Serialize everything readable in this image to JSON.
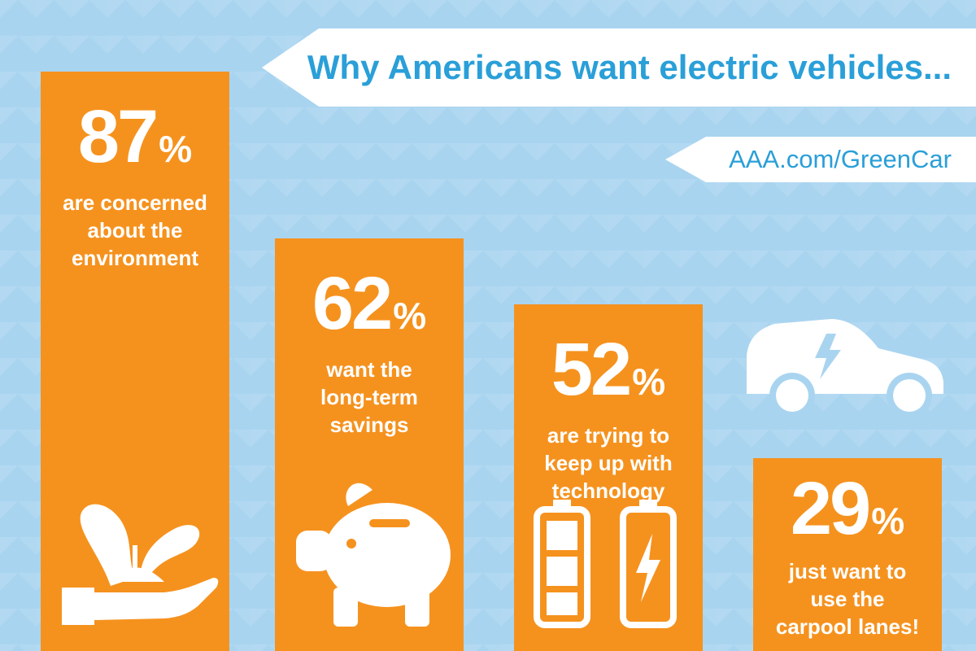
{
  "title": "Why Americans want electric vehicles...",
  "source": "AAA.com/GreenCar",
  "colors": {
    "background": "#a9d4f0",
    "bar": "#f5921e",
    "accent": "#2a9fd8",
    "text": "#ffffff"
  },
  "chart_data": {
    "type": "bar",
    "title": "Why Americans want electric vehicles...",
    "categories": [
      "are concerned about the environment",
      "want the long-term savings",
      "are trying to keep up with technology",
      "just want to use the carpool lanes!"
    ],
    "values": [
      87,
      62,
      52,
      29
    ],
    "unit": "%",
    "ylim": [
      0,
      100
    ],
    "bars": [
      {
        "value": "87",
        "sign": "%",
        "lines": [
          "are concerned",
          "about the",
          "environment"
        ],
        "icon": "plant-in-hand-icon"
      },
      {
        "value": "62",
        "sign": "%",
        "lines": [
          "want the",
          "long-term",
          "savings"
        ],
        "icon": "piggy-bank-icon"
      },
      {
        "value": "52",
        "sign": "%",
        "lines": [
          "are trying to",
          "keep up with",
          "technology"
        ],
        "icon": "battery-icon"
      },
      {
        "value": "29",
        "sign": "%",
        "lines": [
          "just want to",
          "use the",
          "carpool lanes!"
        ],
        "icon": "electric-car-icon"
      }
    ]
  }
}
